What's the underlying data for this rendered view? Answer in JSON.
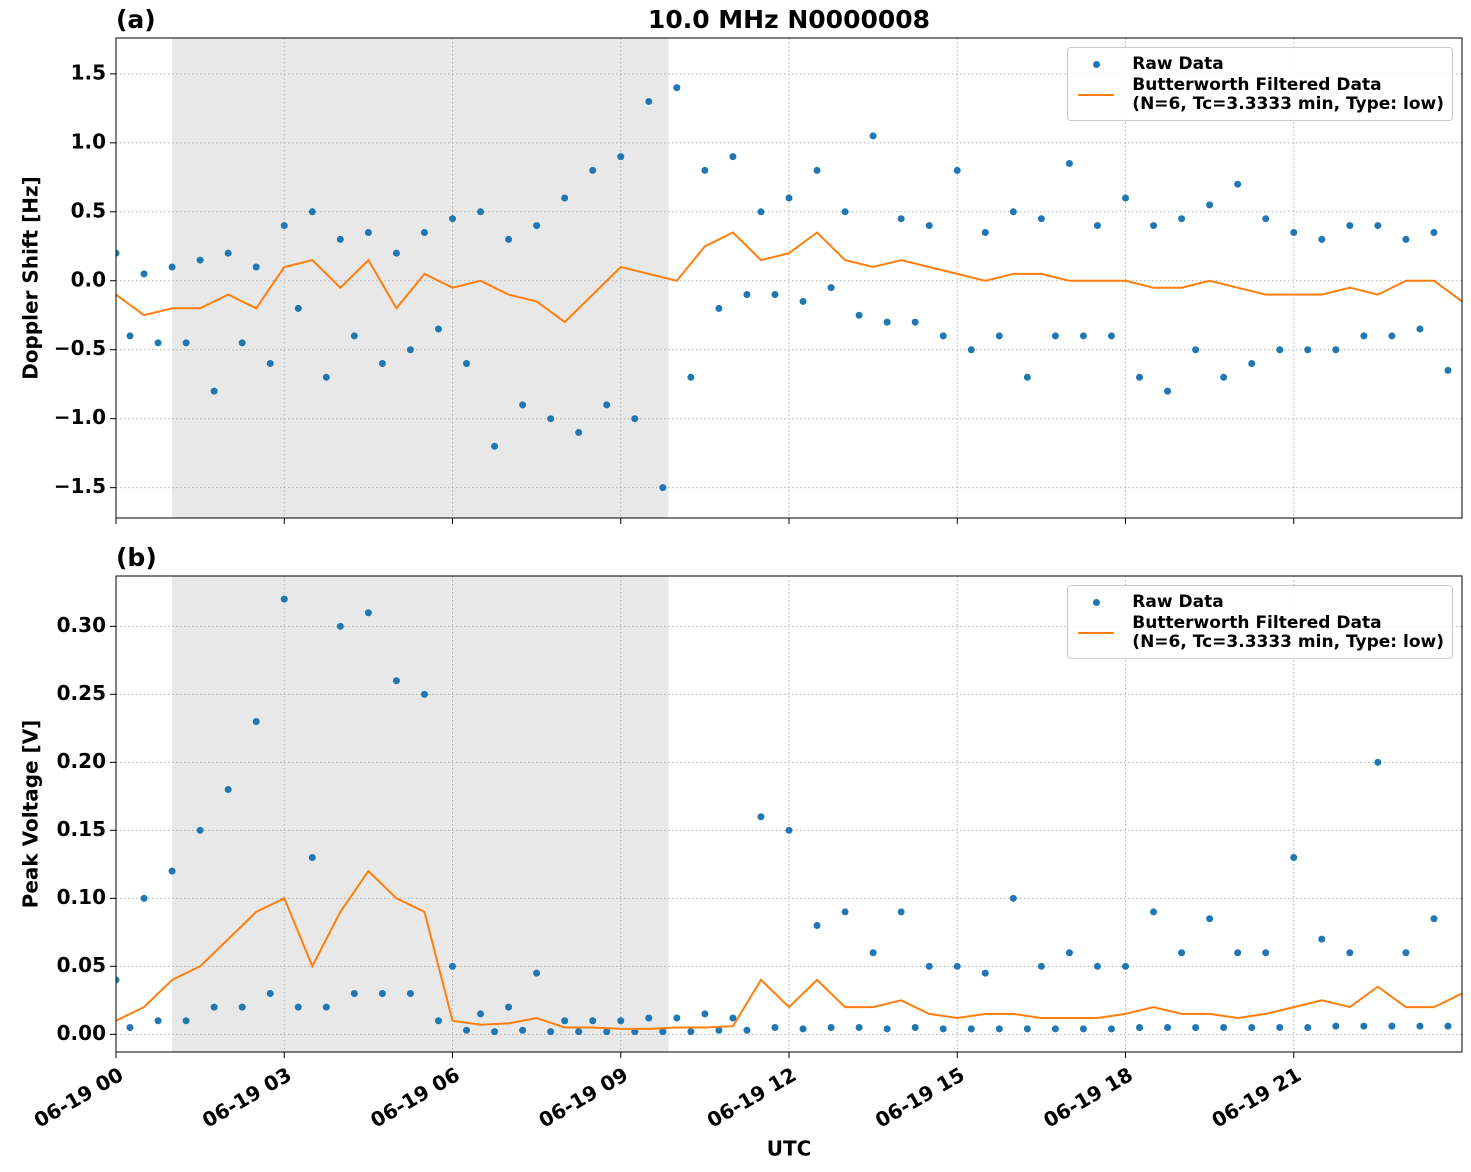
{
  "chart_data": [
    {
      "type": "scatter-line",
      "title": "10.0 MHz N0000008",
      "panel_label": "(a)",
      "ylabel": "Doppler Shift [Hz]",
      "xlim": [
        0,
        24
      ],
      "xticks": [
        0,
        3,
        6,
        9,
        12,
        15,
        18,
        21
      ],
      "ylim": [
        -1.72,
        1.76
      ],
      "yticks": [
        {
          "value": -1.5,
          "label": "−1.5"
        },
        {
          "value": -1.0,
          "label": "−1.0"
        },
        {
          "value": -0.5,
          "label": "−0.5"
        },
        {
          "value": 0,
          "label": "0.0"
        },
        0.5,
        {
          "value": 1.0,
          "label": "1.0"
        },
        1.5
      ],
      "grid": true,
      "shaded_span": [
        1.0,
        9.85
      ],
      "legend": "upper right",
      "series": [
        {
          "name": "Raw Data",
          "color": "#1f77b4",
          "marker": "dot",
          "x": [
            0,
            0.25,
            0.5,
            0.75,
            1,
            1.25,
            1.5,
            1.75,
            2,
            2.25,
            2.5,
            2.75,
            3,
            3.25,
            3.5,
            3.75,
            4,
            4.25,
            4.5,
            4.75,
            5,
            5.25,
            5.5,
            5.75,
            6,
            6.25,
            6.5,
            6.75,
            7,
            7.25,
            7.5,
            7.75,
            8,
            8.25,
            8.5,
            8.75,
            9,
            9.25,
            9.5,
            9.75,
            10,
            10.25,
            10.5,
            10.75,
            11,
            11.25,
            11.5,
            11.75,
            12,
            12.25,
            12.5,
            12.75,
            13,
            13.25,
            13.5,
            13.75,
            14,
            14.25,
            14.5,
            14.75,
            15,
            15.25,
            15.5,
            15.75,
            16,
            16.25,
            16.5,
            16.75,
            17,
            17.25,
            17.5,
            17.75,
            18,
            18.25,
            18.5,
            18.75,
            19,
            19.25,
            19.5,
            19.75,
            20,
            20.25,
            20.5,
            20.75,
            21,
            21.25,
            21.5,
            21.75,
            22,
            22.25,
            22.5,
            22.75,
            23,
            23.25,
            23.5,
            23.75
          ],
          "values": [
            0.2,
            -0.4,
            0.05,
            -0.45,
            0.1,
            -0.45,
            0.15,
            -0.8,
            0.2,
            -0.45,
            0.1,
            -0.6,
            0.4,
            -0.2,
            0.5,
            -0.7,
            0.3,
            -0.4,
            0.35,
            -0.6,
            0.2,
            -0.5,
            0.35,
            -0.35,
            0.45,
            -0.6,
            0.5,
            -1.2,
            0.3,
            -0.9,
            0.4,
            -1.0,
            0.6,
            -1.1,
            0.8,
            -0.9,
            0.9,
            -1.0,
            1.3,
            -1.5,
            1.4,
            -0.7,
            0.8,
            -0.2,
            0.9,
            -0.1,
            0.5,
            -0.1,
            0.6,
            -0.15,
            0.8,
            -0.05,
            0.5,
            -0.25,
            1.05,
            -0.3,
            0.45,
            -0.3,
            0.4,
            -0.4,
            0.8,
            -0.5,
            0.35,
            -0.4,
            0.5,
            -0.7,
            0.45,
            -0.4,
            0.85,
            -0.4,
            0.4,
            -0.4,
            0.6,
            -0.7,
            0.4,
            -0.8,
            0.45,
            -0.5,
            0.55,
            -0.7,
            0.7,
            -0.6,
            0.45,
            -0.5,
            0.35,
            -0.5,
            0.3,
            -0.5,
            0.4,
            -0.4,
            0.4,
            -0.4,
            0.3,
            -0.35,
            0.35,
            -0.65
          ]
        },
        {
          "name": "Butterworth Filtered Data\n(N=6, Tc=3.3333 min, Type: low)",
          "color": "#ff7f0e",
          "marker": "line",
          "x": [
            0,
            0.5,
            1,
            1.5,
            2,
            2.5,
            3,
            3.5,
            4,
            4.5,
            5,
            5.5,
            6,
            6.5,
            7,
            7.5,
            8,
            8.5,
            9,
            9.5,
            10,
            10.5,
            11,
            11.5,
            12,
            12.5,
            13,
            13.5,
            14,
            14.5,
            15,
            15.5,
            16,
            16.5,
            17,
            17.5,
            18,
            18.5,
            19,
            19.5,
            20,
            20.5,
            21,
            21.5,
            22,
            22.5,
            23,
            23.5,
            24
          ],
          "values": [
            -0.1,
            -0.25,
            -0.2,
            -0.2,
            -0.1,
            -0.2,
            0.1,
            0.15,
            -0.05,
            0.15,
            -0.2,
            0.05,
            -0.05,
            0.0,
            -0.1,
            -0.15,
            -0.3,
            -0.1,
            0.1,
            0.05,
            0.0,
            0.25,
            0.35,
            0.15,
            0.2,
            0.35,
            0.15,
            0.1,
            0.15,
            0.1,
            0.05,
            0.0,
            0.05,
            0.05,
            0.0,
            0.0,
            0.0,
            -0.05,
            -0.05,
            0.0,
            -0.05,
            -0.1,
            -0.1,
            -0.1,
            -0.05,
            -0.1,
            0.0,
            0.0,
            -0.15
          ]
        }
      ]
    },
    {
      "type": "scatter-line",
      "panel_label": "(b)",
      "ylabel": "Peak Voltage [V]",
      "xlabel": "UTC",
      "xlim": [
        0,
        24
      ],
      "xticks": [
        {
          "value": 0,
          "label": "06-19 00"
        },
        {
          "value": 3,
          "label": "06-19 03"
        },
        {
          "value": 6,
          "label": "06-19 06"
        },
        {
          "value": 9,
          "label": "06-19 09"
        },
        {
          "value": 12,
          "label": "06-19 12"
        },
        {
          "value": 15,
          "label": "06-19 15"
        },
        {
          "value": 18,
          "label": "06-19 18"
        },
        {
          "value": 21,
          "label": "06-19 21"
        }
      ],
      "ylim": [
        -0.013,
        0.337
      ],
      "yticks": [
        {
          "value": 0,
          "label": "0.00"
        },
        {
          "value": 0.05,
          "label": "0.05"
        },
        {
          "value": 0.1,
          "label": "0.10"
        },
        {
          "value": 0.15,
          "label": "0.15"
        },
        {
          "value": 0.2,
          "label": "0.20"
        },
        {
          "value": 0.25,
          "label": "0.25"
        },
        {
          "value": 0.3,
          "label": "0.30"
        }
      ],
      "grid": true,
      "shaded_span": [
        1.0,
        9.85
      ],
      "legend": "upper right",
      "series": [
        {
          "name": "Raw Data",
          "color": "#1f77b4",
          "marker": "dot",
          "x": [
            0,
            0.25,
            0.5,
            0.75,
            1,
            1.25,
            1.5,
            1.75,
            2,
            2.25,
            2.5,
            2.75,
            3,
            3.25,
            3.5,
            3.75,
            4,
            4.25,
            4.5,
            4.75,
            5,
            5.25,
            5.5,
            5.75,
            6,
            6.25,
            6.5,
            6.75,
            7,
            7.25,
            7.5,
            7.75,
            8,
            8.25,
            8.5,
            8.75,
            9,
            9.25,
            9.5,
            9.75,
            10,
            10.25,
            10.5,
            10.75,
            11,
            11.25,
            11.5,
            11.75,
            12,
            12.25,
            12.5,
            12.75,
            13,
            13.25,
            13.5,
            13.75,
            14,
            14.25,
            14.5,
            14.75,
            15,
            15.25,
            15.5,
            15.75,
            16,
            16.25,
            16.5,
            16.75,
            17,
            17.25,
            17.5,
            17.75,
            18,
            18.25,
            18.5,
            18.75,
            19,
            19.25,
            19.5,
            19.75,
            20,
            20.25,
            20.5,
            20.75,
            21,
            21.25,
            21.5,
            21.75,
            22,
            22.25,
            22.5,
            22.75,
            23,
            23.25,
            23.5,
            23.75
          ],
          "values": [
            0.04,
            0.005,
            0.1,
            0.01,
            0.12,
            0.01,
            0.15,
            0.02,
            0.18,
            0.02,
            0.23,
            0.03,
            0.32,
            0.02,
            0.13,
            0.02,
            0.3,
            0.03,
            0.31,
            0.03,
            0.26,
            0.03,
            0.25,
            0.01,
            0.05,
            0.003,
            0.015,
            0.002,
            0.02,
            0.003,
            0.045,
            0.002,
            0.01,
            0.002,
            0.01,
            0.002,
            0.01,
            0.002,
            0.012,
            0.002,
            0.012,
            0.002,
            0.015,
            0.003,
            0.012,
            0.003,
            0.16,
            0.005,
            0.15,
            0.004,
            0.08,
            0.005,
            0.09,
            0.005,
            0.06,
            0.004,
            0.09,
            0.005,
            0.05,
            0.004,
            0.05,
            0.004,
            0.045,
            0.004,
            0.1,
            0.004,
            0.05,
            0.004,
            0.06,
            0.004,
            0.05,
            0.004,
            0.05,
            0.005,
            0.09,
            0.005,
            0.06,
            0.005,
            0.085,
            0.005,
            0.06,
            0.005,
            0.06,
            0.005,
            0.13,
            0.005,
            0.07,
            0.006,
            0.06,
            0.006,
            0.2,
            0.006,
            0.06,
            0.006,
            0.085,
            0.006
          ]
        },
        {
          "name": "Butterworth Filtered Data\n(N=6, Tc=3.3333 min, Type: low)",
          "color": "#ff7f0e",
          "marker": "line",
          "x": [
            0,
            0.5,
            1,
            1.5,
            2,
            2.5,
            3,
            3.5,
            4,
            4.5,
            5,
            5.5,
            6,
            6.5,
            7,
            7.5,
            8,
            8.5,
            9,
            9.5,
            10,
            10.5,
            11,
            11.5,
            12,
            12.5,
            13,
            13.5,
            14,
            14.5,
            15,
            15.5,
            16,
            16.5,
            17,
            17.5,
            18,
            18.5,
            19,
            19.5,
            20,
            20.5,
            21,
            21.5,
            22,
            22.5,
            23,
            23.5,
            24
          ],
          "values": [
            0.01,
            0.02,
            0.04,
            0.05,
            0.07,
            0.09,
            0.1,
            0.05,
            0.09,
            0.12,
            0.1,
            0.09,
            0.01,
            0.007,
            0.008,
            0.012,
            0.005,
            0.005,
            0.004,
            0.004,
            0.005,
            0.005,
            0.006,
            0.04,
            0.02,
            0.04,
            0.02,
            0.02,
            0.025,
            0.015,
            0.012,
            0.015,
            0.015,
            0.012,
            0.012,
            0.012,
            0.015,
            0.02,
            0.015,
            0.015,
            0.012,
            0.015,
            0.02,
            0.025,
            0.02,
            0.035,
            0.02,
            0.02,
            0.03
          ]
        }
      ]
    }
  ]
}
